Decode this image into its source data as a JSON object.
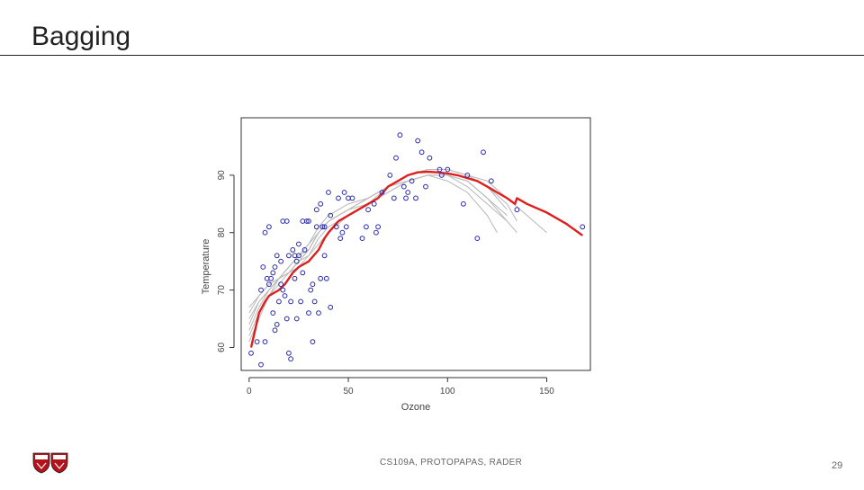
{
  "slide": {
    "title": "Bagging",
    "footer": "CS109A, PROTOPAPAS, RADER",
    "page_number": "29"
  },
  "colors": {
    "points": "#2a2aa8",
    "bagged_fits": "#bdbdbd",
    "average_fit": "#dd1f1f",
    "axis": "#333333"
  },
  "chart_data": {
    "type": "scatter",
    "xlabel": "Ozone",
    "ylabel": "Temperature",
    "xlim": [
      -4,
      172
    ],
    "ylim": [
      56,
      100
    ],
    "xticks": [
      0,
      50,
      100,
      150
    ],
    "yticks": [
      60,
      70,
      80,
      90
    ],
    "grid": false,
    "points": [
      [
        1,
        59
      ],
      [
        4,
        61
      ],
      [
        6,
        57
      ],
      [
        7,
        74
      ],
      [
        8,
        61
      ],
      [
        10,
        71
      ],
      [
        11,
        72
      ],
      [
        12,
        73
      ],
      [
        13,
        74
      ],
      [
        14,
        64
      ],
      [
        16,
        71
      ],
      [
        17,
        70
      ],
      [
        19,
        82
      ],
      [
        20,
        76
      ],
      [
        21,
        58
      ],
      [
        23,
        76
      ],
      [
        24,
        75
      ],
      [
        25,
        76
      ],
      [
        27,
        82
      ],
      [
        29,
        82
      ],
      [
        30,
        66
      ],
      [
        32,
        71
      ],
      [
        34,
        84
      ],
      [
        36,
        85
      ],
      [
        37,
        81
      ],
      [
        38,
        76
      ],
      [
        39,
        72
      ],
      [
        40,
        87
      ],
      [
        41,
        67
      ],
      [
        44,
        81
      ],
      [
        45,
        86
      ],
      [
        46,
        79
      ],
      [
        47,
        80
      ],
      [
        48,
        87
      ],
      [
        49,
        81
      ],
      [
        50,
        86
      ],
      [
        52,
        86
      ],
      [
        57,
        79
      ],
      [
        59,
        81
      ],
      [
        60,
        84
      ],
      [
        63,
        85
      ],
      [
        64,
        80
      ],
      [
        65,
        81
      ],
      [
        67,
        87
      ],
      [
        71,
        90
      ],
      [
        73,
        86
      ],
      [
        74,
        93
      ],
      [
        76,
        97
      ],
      [
        78,
        88
      ],
      [
        79,
        86
      ],
      [
        80,
        87
      ],
      [
        82,
        89
      ],
      [
        84,
        86
      ],
      [
        85,
        96
      ],
      [
        87,
        94
      ],
      [
        89,
        88
      ],
      [
        91,
        93
      ],
      [
        96,
        91
      ],
      [
        97,
        90
      ],
      [
        100,
        91
      ],
      [
        108,
        85
      ],
      [
        110,
        90
      ],
      [
        115,
        79
      ],
      [
        118,
        94
      ],
      [
        122,
        89
      ],
      [
        135,
        84
      ],
      [
        168,
        81
      ],
      [
        6,
        70
      ],
      [
        8,
        80
      ],
      [
        9,
        72
      ],
      [
        10,
        81
      ],
      [
        12,
        66
      ],
      [
        13,
        63
      ],
      [
        14,
        76
      ],
      [
        15,
        68
      ],
      [
        16,
        75
      ],
      [
        17,
        82
      ],
      [
        18,
        69
      ],
      [
        19,
        65
      ],
      [
        20,
        59
      ],
      [
        21,
        68
      ],
      [
        22,
        77
      ],
      [
        23,
        72
      ],
      [
        24,
        65
      ],
      [
        25,
        78
      ],
      [
        26,
        68
      ],
      [
        27,
        73
      ],
      [
        28,
        77
      ],
      [
        30,
        82
      ],
      [
        31,
        70
      ],
      [
        32,
        61
      ],
      [
        33,
        68
      ],
      [
        34,
        81
      ],
      [
        35,
        66
      ],
      [
        36,
        72
      ],
      [
        38,
        81
      ],
      [
        41,
        83
      ]
    ],
    "series": [
      {
        "values": [
          [
            0,
            61
          ],
          [
            5,
            65
          ],
          [
            10,
            69
          ],
          [
            15,
            72
          ],
          [
            20,
            74
          ],
          [
            25,
            76
          ],
          [
            30,
            77
          ],
          [
            35,
            80
          ],
          [
            40,
            82
          ],
          [
            50,
            84
          ],
          [
            60,
            85
          ],
          [
            70,
            87
          ],
          [
            80,
            89
          ],
          [
            90,
            90
          ],
          [
            100,
            90
          ],
          [
            110,
            89
          ],
          [
            120,
            86
          ],
          [
            130,
            82
          ],
          [
            135,
            80
          ]
        ]
      },
      {
        "values": [
          [
            0,
            65
          ],
          [
            5,
            68
          ],
          [
            10,
            70
          ],
          [
            15,
            72
          ],
          [
            20,
            73
          ],
          [
            25,
            75
          ],
          [
            30,
            76
          ],
          [
            35,
            79
          ],
          [
            40,
            81
          ],
          [
            50,
            83
          ],
          [
            60,
            85
          ],
          [
            70,
            88
          ],
          [
            80,
            90
          ],
          [
            90,
            91
          ],
          [
            100,
            91
          ],
          [
            110,
            90
          ],
          [
            120,
            88
          ],
          [
            130,
            84
          ]
        ]
      },
      {
        "values": [
          [
            0,
            62
          ],
          [
            5,
            66
          ],
          [
            10,
            69
          ],
          [
            15,
            71
          ],
          [
            20,
            73
          ],
          [
            25,
            75
          ],
          [
            30,
            77
          ],
          [
            35,
            80
          ],
          [
            40,
            82
          ],
          [
            50,
            84
          ],
          [
            60,
            86
          ],
          [
            70,
            88
          ],
          [
            80,
            89
          ],
          [
            90,
            90
          ],
          [
            100,
            89
          ],
          [
            110,
            87
          ],
          [
            120,
            83
          ],
          [
            125,
            80
          ]
        ]
      },
      {
        "values": [
          [
            0,
            66
          ],
          [
            5,
            69
          ],
          [
            10,
            71
          ],
          [
            15,
            72
          ],
          [
            20,
            74
          ],
          [
            25,
            76
          ],
          [
            30,
            78
          ],
          [
            35,
            81
          ],
          [
            40,
            83
          ],
          [
            50,
            85
          ],
          [
            60,
            86
          ],
          [
            70,
            88
          ],
          [
            80,
            90
          ],
          [
            90,
            91
          ],
          [
            100,
            91
          ],
          [
            110,
            90
          ],
          [
            120,
            89
          ],
          [
            130,
            86
          ],
          [
            140,
            83
          ],
          [
            150,
            80
          ]
        ]
      },
      {
        "values": [
          [
            0,
            63
          ],
          [
            5,
            67
          ],
          [
            10,
            70
          ],
          [
            15,
            72
          ],
          [
            20,
            73
          ],
          [
            25,
            74
          ],
          [
            30,
            76
          ],
          [
            35,
            78
          ],
          [
            40,
            80
          ],
          [
            50,
            83
          ],
          [
            60,
            85
          ],
          [
            70,
            87
          ],
          [
            80,
            89
          ],
          [
            90,
            90
          ],
          [
            100,
            90
          ],
          [
            110,
            89
          ],
          [
            120,
            86
          ],
          [
            130,
            83
          ]
        ]
      },
      {
        "values": [
          [
            0,
            67
          ],
          [
            5,
            69
          ],
          [
            10,
            71
          ],
          [
            15,
            72
          ],
          [
            20,
            74
          ],
          [
            25,
            76
          ],
          [
            30,
            78
          ],
          [
            35,
            80
          ],
          [
            40,
            82
          ],
          [
            50,
            84
          ],
          [
            60,
            86
          ],
          [
            70,
            88
          ],
          [
            80,
            90
          ],
          [
            90,
            91
          ],
          [
            100,
            91
          ],
          [
            110,
            90
          ],
          [
            120,
            88
          ],
          [
            130,
            85
          ],
          [
            135,
            82
          ]
        ]
      },
      {
        "values": [
          [
            0,
            64
          ],
          [
            5,
            68
          ],
          [
            10,
            70
          ],
          [
            15,
            72
          ],
          [
            20,
            73
          ],
          [
            25,
            75
          ],
          [
            30,
            77
          ],
          [
            35,
            80
          ],
          [
            40,
            82
          ],
          [
            50,
            84
          ],
          [
            60,
            86
          ],
          [
            70,
            88
          ],
          [
            80,
            89
          ],
          [
            90,
            90
          ],
          [
            100,
            90
          ],
          [
            110,
            88
          ],
          [
            120,
            85
          ],
          [
            130,
            82
          ]
        ]
      }
    ],
    "average": [
      [
        1,
        60
      ],
      [
        3,
        63
      ],
      [
        5,
        66
      ],
      [
        8,
        68
      ],
      [
        10,
        69
      ],
      [
        15,
        70
      ],
      [
        18,
        71
      ],
      [
        20,
        72
      ],
      [
        22,
        73
      ],
      [
        25,
        74
      ],
      [
        30,
        75
      ],
      [
        35,
        77
      ],
      [
        38,
        79
      ],
      [
        40,
        80
      ],
      [
        45,
        82
      ],
      [
        50,
        83
      ],
      [
        55,
        84
      ],
      [
        60,
        85
      ],
      [
        65,
        86
      ],
      [
        70,
        88
      ],
      [
        75,
        89
      ],
      [
        80,
        90
      ],
      [
        85,
        90.5
      ],
      [
        90,
        90.6
      ],
      [
        95,
        90.5
      ],
      [
        100,
        90.3
      ],
      [
        105,
        90
      ],
      [
        110,
        89.5
      ],
      [
        115,
        89
      ],
      [
        120,
        88
      ],
      [
        125,
        87
      ],
      [
        130,
        86
      ],
      [
        134,
        85
      ],
      [
        135,
        86
      ],
      [
        140,
        85
      ],
      [
        150,
        83.5
      ],
      [
        160,
        81.5
      ],
      [
        168,
        79.5
      ]
    ]
  }
}
